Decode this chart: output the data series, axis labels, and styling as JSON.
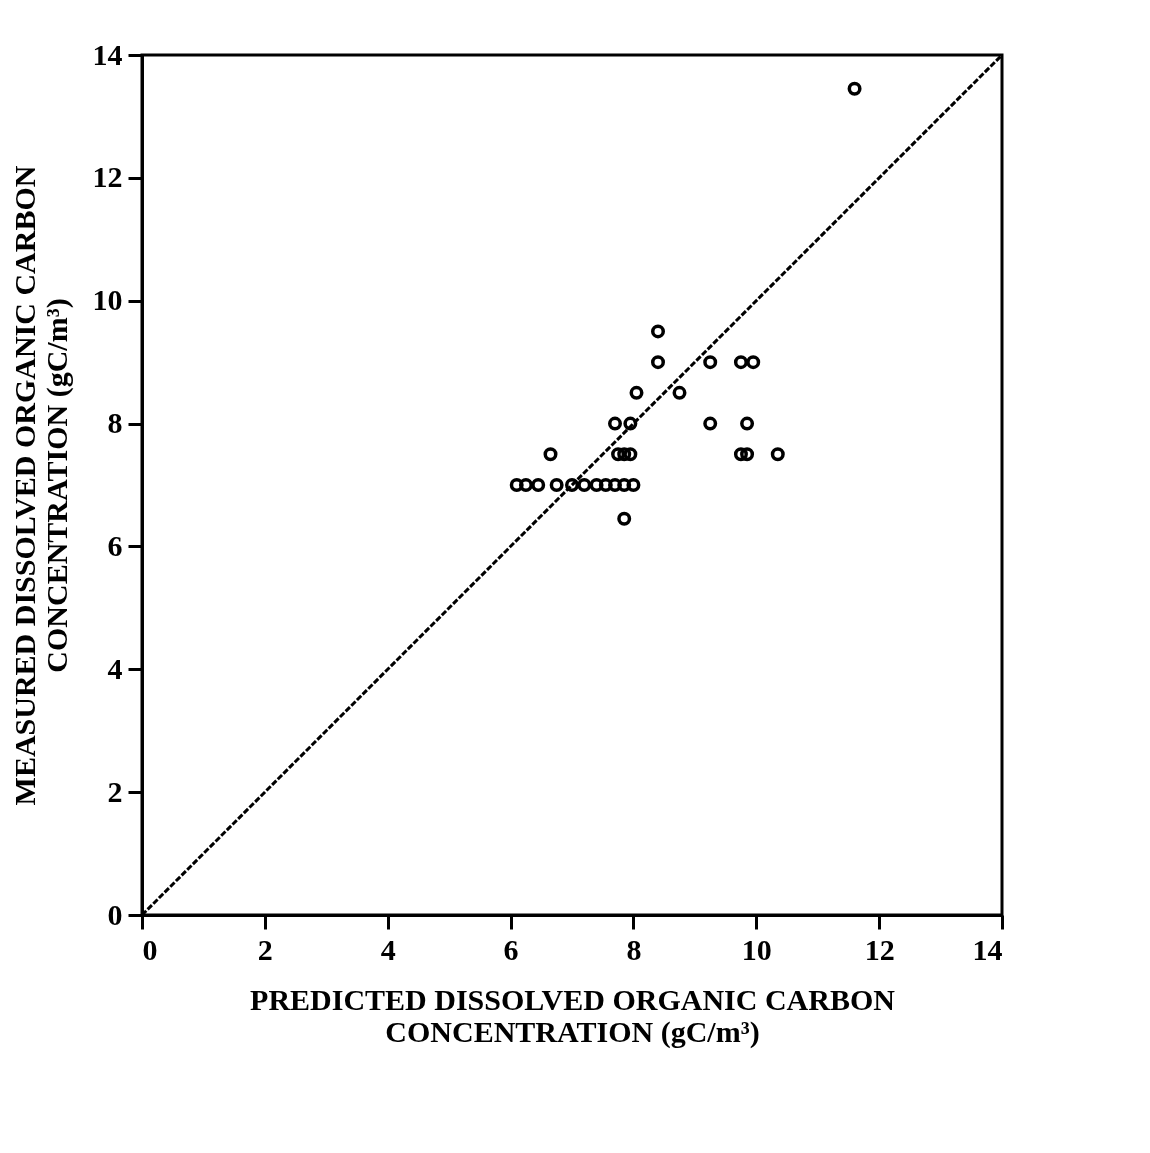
{
  "chart_data": {
    "type": "scatter",
    "xlabel": "PREDICTED DISSOLVED ORGANIC CARBON\nCONCENTRATION (gC/m³)",
    "ylabel": "MEASURED DISSOLVED ORGANIC CARBON\nCONCENTRATION (gC/m³)",
    "xlim": [
      0,
      14
    ],
    "ylim": [
      0,
      14
    ],
    "xticks": [
      0,
      2,
      4,
      6,
      8,
      10,
      12,
      14
    ],
    "yticks": [
      0,
      2,
      4,
      6,
      8,
      10,
      12,
      14
    ],
    "grid": false,
    "series": [
      {
        "marker": "circle",
        "color": "#000000",
        "x": [
          8.4,
          8.4,
          9.25,
          9.75,
          9.95,
          8.05,
          8.75,
          7.7,
          7.95,
          9.25,
          9.85,
          6.65,
          7.75,
          7.85,
          7.95,
          9.75,
          9.85,
          10.35,
          6.1,
          6.25,
          6.45,
          6.75,
          7.0,
          7.2,
          7.4,
          7.55,
          7.7,
          7.85,
          8.0,
          7.85,
          11.6
        ],
        "values": [
          9.5,
          9.0,
          9.0,
          9.0,
          9.0,
          8.5,
          8.5,
          8.0,
          8.0,
          8.0,
          8.0,
          7.5,
          7.5,
          7.5,
          7.5,
          7.5,
          7.5,
          7.5,
          7.0,
          7.0,
          7.0,
          7.0,
          7.0,
          7.0,
          7.0,
          7.0,
          7.0,
          7.0,
          7.0,
          6.45,
          13.45
        ]
      },
      {
        "type": "line",
        "color": "#000000",
        "line_style": "dashed",
        "x": [
          0,
          14
        ],
        "values": [
          0,
          14
        ]
      }
    ]
  }
}
